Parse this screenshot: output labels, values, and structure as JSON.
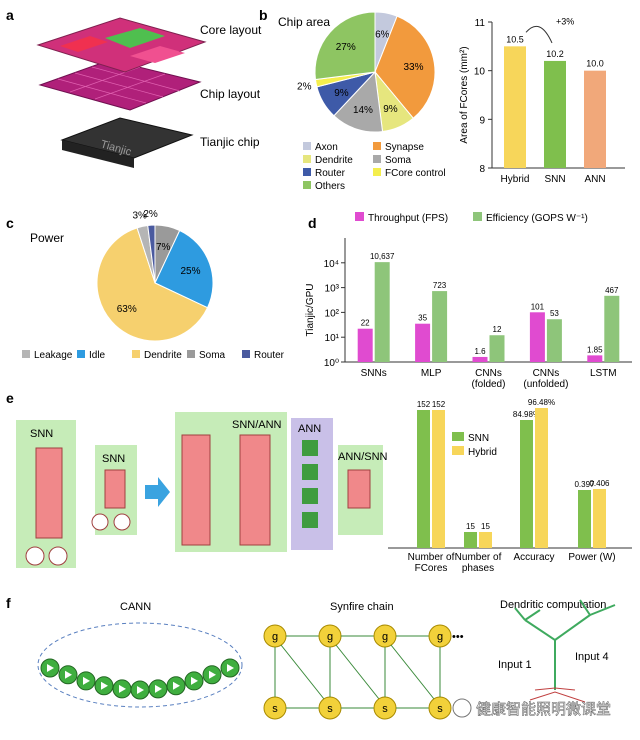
{
  "panel_labels": {
    "a": "a",
    "b": "b",
    "c": "c",
    "d": "d",
    "e": "e",
    "f": "f"
  },
  "panel_a": {
    "layer_labels": [
      "Core layout",
      "Chip layout",
      "Tianjic chip"
    ],
    "chip_text": "Tianjic"
  },
  "watermark": "健康智能照明微课堂",
  "colors": {
    "axon": "#c3c9dd",
    "synapse": "#f29a3d",
    "dendrite": "#e6e67e",
    "soma": "#a9a9a9",
    "router": "#3e5aa8",
    "fcore_control": "#f4ee4d",
    "others": "#8ec562",
    "leakage": "#b5b5b5",
    "idle": "#2e9be0",
    "dendrite_power": "#f6d06e",
    "soma_power": "#9a9a9a",
    "router_power": "#4a5a9f",
    "hybrid": "#f7d65a",
    "snn": "#7fbf4d",
    "ann": "#f1a87a",
    "throughput": "#e04bd0",
    "efficiency": "#8ec57a"
  },
  "chart_data": [
    {
      "type": "pie",
      "title": "Chip area",
      "labels": [
        "Axon",
        "Synapse",
        "Dendrite",
        "Soma",
        "Router",
        "FCore control",
        "Others"
      ],
      "values": [
        6,
        33,
        9,
        14,
        9,
        2,
        27
      ],
      "slice_labels": [
        "6%",
        "33%",
        "9%",
        "14%",
        "9%",
        "2%",
        "27%"
      ],
      "legend_position": "bottom"
    },
    {
      "type": "bar",
      "categories": [
        "Hybrid",
        "SNN",
        "ANN"
      ],
      "values": [
        10.5,
        10.2,
        10.0
      ],
      "value_labels": [
        "10.5",
        "10.2",
        "10.0"
      ],
      "ylabel": "Area of FCores (mm²)",
      "ylim": [
        8,
        11
      ],
      "yticks": [
        "8",
        "9",
        "10",
        "11"
      ],
      "annotation": "+3%"
    },
    {
      "type": "pie",
      "title": "Power",
      "labels": [
        "Leakage",
        "Idle",
        "Dendrite",
        "Soma",
        "Router"
      ],
      "values": [
        3,
        25,
        63,
        7,
        2
      ],
      "slice_labels": [
        "3%",
        "25%",
        "63%",
        "7%",
        "2%"
      ],
      "legend_position": "bottom"
    },
    {
      "type": "bar",
      "categories": [
        "SNNs",
        "MLP",
        "CNNs (folded)",
        "CNNs (unfolded)",
        "LSTM"
      ],
      "category_lines": [
        [
          "SNNs"
        ],
        [
          "MLP"
        ],
        [
          "CNNs",
          "(folded)"
        ],
        [
          "CNNs",
          "(unfolded)"
        ],
        [
          "LSTM"
        ]
      ],
      "series": [
        {
          "name": "Throughput (FPS)",
          "values": [
            22,
            35,
            1.6,
            101,
            1.85
          ],
          "value_labels": [
            "22",
            "35",
            "1.6",
            "101",
            "1.85"
          ]
        },
        {
          "name": "Efficiency (GOPS W⁻¹)",
          "values": [
            10637,
            723,
            12,
            53,
            467
          ],
          "value_labels": [
            "10,637",
            "723",
            "12",
            "53",
            "467"
          ]
        }
      ],
      "ylabel": "Tianjic/GPU",
      "yscale": "log",
      "ylim": [
        1,
        100000
      ],
      "yticks": [
        "10⁰",
        "10¹",
        "10²",
        "10³",
        "10⁴"
      ],
      "legend_position": "top"
    },
    {
      "type": "bar",
      "categories": [
        "Number of FCores",
        "Number of phases",
        "Accuracy",
        "Power (W)"
      ],
      "category_lines": [
        [
          "Number of",
          "FCores"
        ],
        [
          "Number of",
          "phases"
        ],
        [
          "Accuracy"
        ],
        [
          "Power (W)"
        ]
      ],
      "series": [
        {
          "name": "SNN",
          "value_labels": [
            "152",
            "15",
            "84.98%",
            "0.397"
          ]
        },
        {
          "name": "Hybrid",
          "value_labels": [
            "152",
            "15",
            "96.48%",
            "0.406"
          ]
        }
      ],
      "legend_position": "center-right"
    }
  ],
  "panel_e_diagram": {
    "labels": [
      "SNN",
      "SNN",
      "SNN/ANN",
      "ANN",
      "ANN/SNN"
    ]
  },
  "panel_f": {
    "titles": [
      "CANN",
      "Synfire chain",
      "Dendritic computation"
    ],
    "g": "g",
    "s": "s",
    "ellipsis": "•••",
    "inputs": [
      "Input 1",
      "Input 4"
    ]
  }
}
